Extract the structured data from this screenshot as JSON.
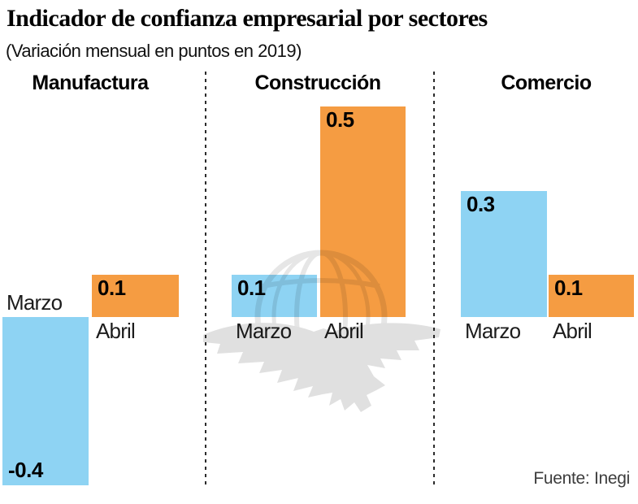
{
  "header": {
    "title": "Indicador de confianza empresarial por sectores",
    "subtitle": "(Variación mensual en puntos en 2019)"
  },
  "footer": {
    "source": "Fuente: Inegi"
  },
  "colors": {
    "march_bar": "#8ed3f3",
    "april_bar": "#f59c42",
    "watermark_gray": "#e0e0e0",
    "divider": "#2b2b2b"
  },
  "watermark": {
    "icon": "eagle-globe-watermark"
  },
  "chart_data": {
    "type": "bar",
    "title": "Indicador de confianza empresarial por sectores",
    "subtitle": "(Variación mensual en puntos en 2019)",
    "categories": [
      "Marzo",
      "Abril"
    ],
    "ylim": [
      -0.4,
      0.5
    ],
    "grid": false,
    "value_labels": true,
    "legend": "none",
    "groups": [
      {
        "label": "Manufactura",
        "series": [
          {
            "name": "Marzo",
            "value": -0.4
          },
          {
            "name": "Abril",
            "value": 0.1
          }
        ]
      },
      {
        "label": "Construcción",
        "series": [
          {
            "name": "Marzo",
            "value": 0.1
          },
          {
            "name": "Abril",
            "value": 0.5
          }
        ]
      },
      {
        "label": "Comercio",
        "series": [
          {
            "name": "Marzo",
            "value": 0.3
          },
          {
            "name": "Abril",
            "value": 0.1
          }
        ]
      }
    ],
    "source": "Fuente: Inegi"
  }
}
